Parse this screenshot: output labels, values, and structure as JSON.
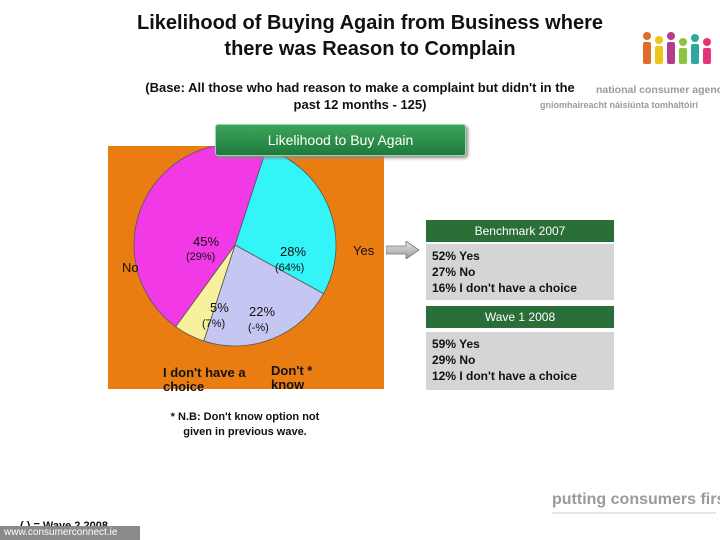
{
  "title_line1": "Likelihood of Buying Again from Business where",
  "title_line2": "there was Reason to Complain",
  "base_note_line1": "(Base: All those who had reason to make a complaint but didn't in the",
  "base_note_line2": "past 12 months - 125)",
  "logo": {
    "line1": "national consumer agency",
    "line2": "gníomhaireacht náisiúnta tomhaltóirí"
  },
  "section_button": "Likelihood to Buy Again",
  "chart_data": {
    "type": "pie",
    "slices": [
      {
        "label": "No",
        "value": 45,
        "value_label": "45%",
        "prev_label": "(29%)",
        "color": "#f239e6"
      },
      {
        "label": "Yes",
        "value": 28,
        "value_label": "28%",
        "prev_label": "(64%)",
        "color": "#33f5f7"
      },
      {
        "label": "Don't * know",
        "value": 22,
        "value_label": "22%",
        "prev_label": "(-%)",
        "color": "#c6c6f2"
      },
      {
        "label": "I don't have a choice",
        "value": 5,
        "value_label": "5%",
        "prev_label": "(7%)",
        "color": "#f7f19d"
      }
    ],
    "background": "#ea7d12"
  },
  "labels": {
    "no": "No",
    "yes": "Yes",
    "dont_choice": "I don't have a choice",
    "dont_know_line1": "Don't *",
    "dont_know_line2": "know"
  },
  "foot_note_line1": "* N.B: Don't know option not",
  "foot_note_line2": "given in previous wave.",
  "wave_note": "( ) = Wave 2 2008",
  "benchmark": {
    "title": "Benchmark 2007",
    "lines": [
      "52% Yes",
      "27% No",
      "16% I don't have a choice"
    ]
  },
  "wave1": {
    "title": "Wave 1 2008",
    "lines": [
      "59% Yes",
      "29% No",
      "12% I don't have a choice"
    ]
  },
  "footer_left": "www.consumerconnect.ie",
  "footer_right": "putting consumers first"
}
